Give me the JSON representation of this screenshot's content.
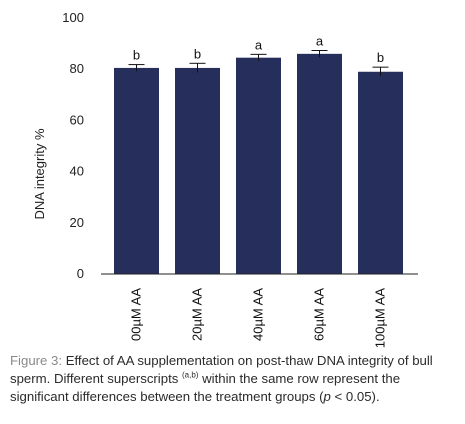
{
  "chart_data": {
    "type": "bar",
    "ylabel": "DNA integrity %",
    "ylim": [
      0,
      100
    ],
    "yticks": [
      0,
      20,
      40,
      60,
      80,
      100
    ],
    "categories": [
      "00µM AA",
      "20µM AA",
      "40µM AA",
      "60µM AA",
      "100µM AA"
    ],
    "values": [
      80.5,
      80.5,
      84.5,
      86.0,
      79.0
    ],
    "errors": [
      1.3,
      1.8,
      1.3,
      1.3,
      1.8
    ],
    "superscripts": [
      "b",
      "b",
      "a",
      "a",
      "b"
    ],
    "bar_color": "#262e5c",
    "grid": false
  },
  "caption": {
    "label": "Figure 3:",
    "text_before": " Effect of AA supplementation on post-thaw DNA integrity of bull sperm. Different superscripts ",
    "sup": "(a,b)",
    "text_after": " within the same row represent the significant differences between the treatment groups (",
    "p_symbol": "p",
    "p_rest": " < 0.05)."
  }
}
